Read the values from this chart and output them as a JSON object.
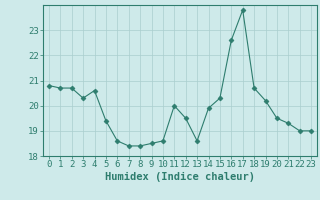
{
  "x": [
    0,
    1,
    2,
    3,
    4,
    5,
    6,
    7,
    8,
    9,
    10,
    11,
    12,
    13,
    14,
    15,
    16,
    17,
    18,
    19,
    20,
    21,
    22,
    23
  ],
  "y": [
    20.8,
    20.7,
    20.7,
    20.3,
    20.6,
    19.4,
    18.6,
    18.4,
    18.4,
    18.5,
    18.6,
    20.0,
    19.5,
    18.6,
    19.9,
    20.3,
    22.6,
    23.8,
    20.7,
    20.2,
    19.5,
    19.3,
    19.0,
    19.0
  ],
  "xlabel": "Humidex (Indice chaleur)",
  "ylabel": "",
  "ylim": [
    18,
    24
  ],
  "xlim_min": -0.5,
  "xlim_max": 23.5,
  "yticks": [
    18,
    19,
    20,
    21,
    22,
    23
  ],
  "xticks": [
    0,
    1,
    2,
    3,
    4,
    5,
    6,
    7,
    8,
    9,
    10,
    11,
    12,
    13,
    14,
    15,
    16,
    17,
    18,
    19,
    20,
    21,
    22,
    23
  ],
  "line_color": "#2e7d6e",
  "marker": "D",
  "marker_size": 2.5,
  "bg_color": "#ceeaea",
  "grid_color": "#aacece",
  "axis_color": "#2e7d6e",
  "tick_color": "#2e7d6e",
  "label_color": "#2e7d6e",
  "tick_font_size": 6.5,
  "xlabel_font_size": 7.5
}
